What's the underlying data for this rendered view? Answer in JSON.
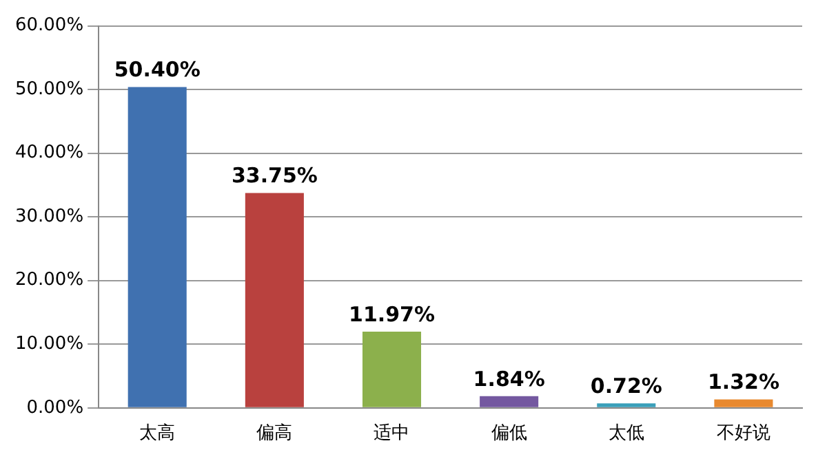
{
  "chart_data": {
    "type": "bar",
    "categories": [
      "太高",
      "偏高",
      "适中",
      "偏低",
      "太低",
      "不好说"
    ],
    "values": [
      50.4,
      33.75,
      11.97,
      1.84,
      0.72,
      1.32
    ],
    "colors": [
      "#4071b0",
      "#b9413e",
      "#8cb04c",
      "#7458a0",
      "#3a9fba",
      "#e8892f"
    ],
    "value_labels": [
      "50.40%",
      "33.75%",
      "11.97%",
      "1.84%",
      "0.72%",
      "1.32%"
    ],
    "ylim": [
      0,
      60
    ],
    "yticks": [
      {
        "value": 0,
        "label": "0.00%"
      },
      {
        "value": 10,
        "label": "10.00%"
      },
      {
        "value": 20,
        "label": "20.00%"
      },
      {
        "value": 30,
        "label": "30.00%"
      },
      {
        "value": 40,
        "label": "40.00%"
      },
      {
        "value": 50,
        "label": "50.00%"
      },
      {
        "value": 60,
        "label": "60.00%"
      }
    ],
    "grid": "y"
  }
}
